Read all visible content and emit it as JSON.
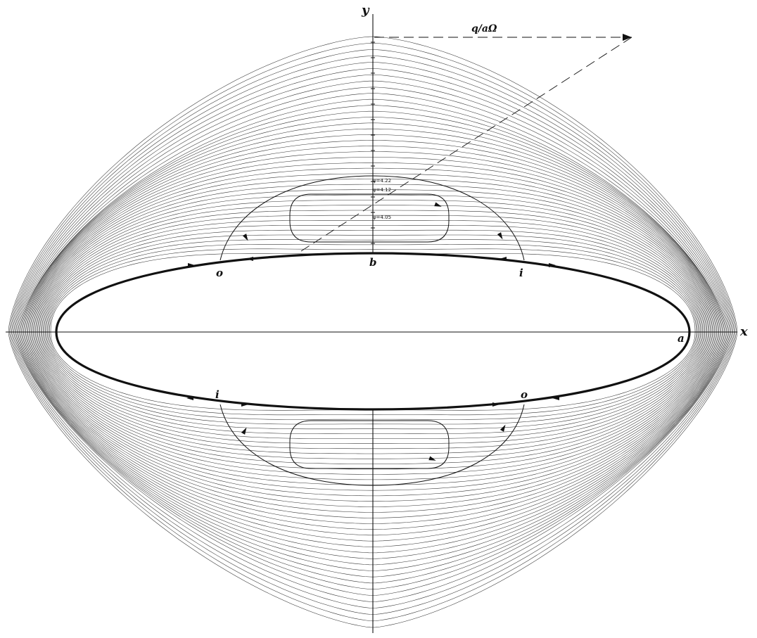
{
  "figure": {
    "labels": {
      "x_axis": "x",
      "y_axis": "y",
      "velocity": "q/aΩ",
      "point_a": "a",
      "point_b": "b",
      "outlet_upper": "o",
      "inlet_upper": "i",
      "inlet_lower": "i",
      "outlet_lower": "o"
    },
    "psi_labels": [
      "ψ=4.22",
      "ψ=4.12",
      "ψ=4.05"
    ],
    "colors": {
      "ink": "#111111",
      "paper": "#ffffff"
    }
  }
}
